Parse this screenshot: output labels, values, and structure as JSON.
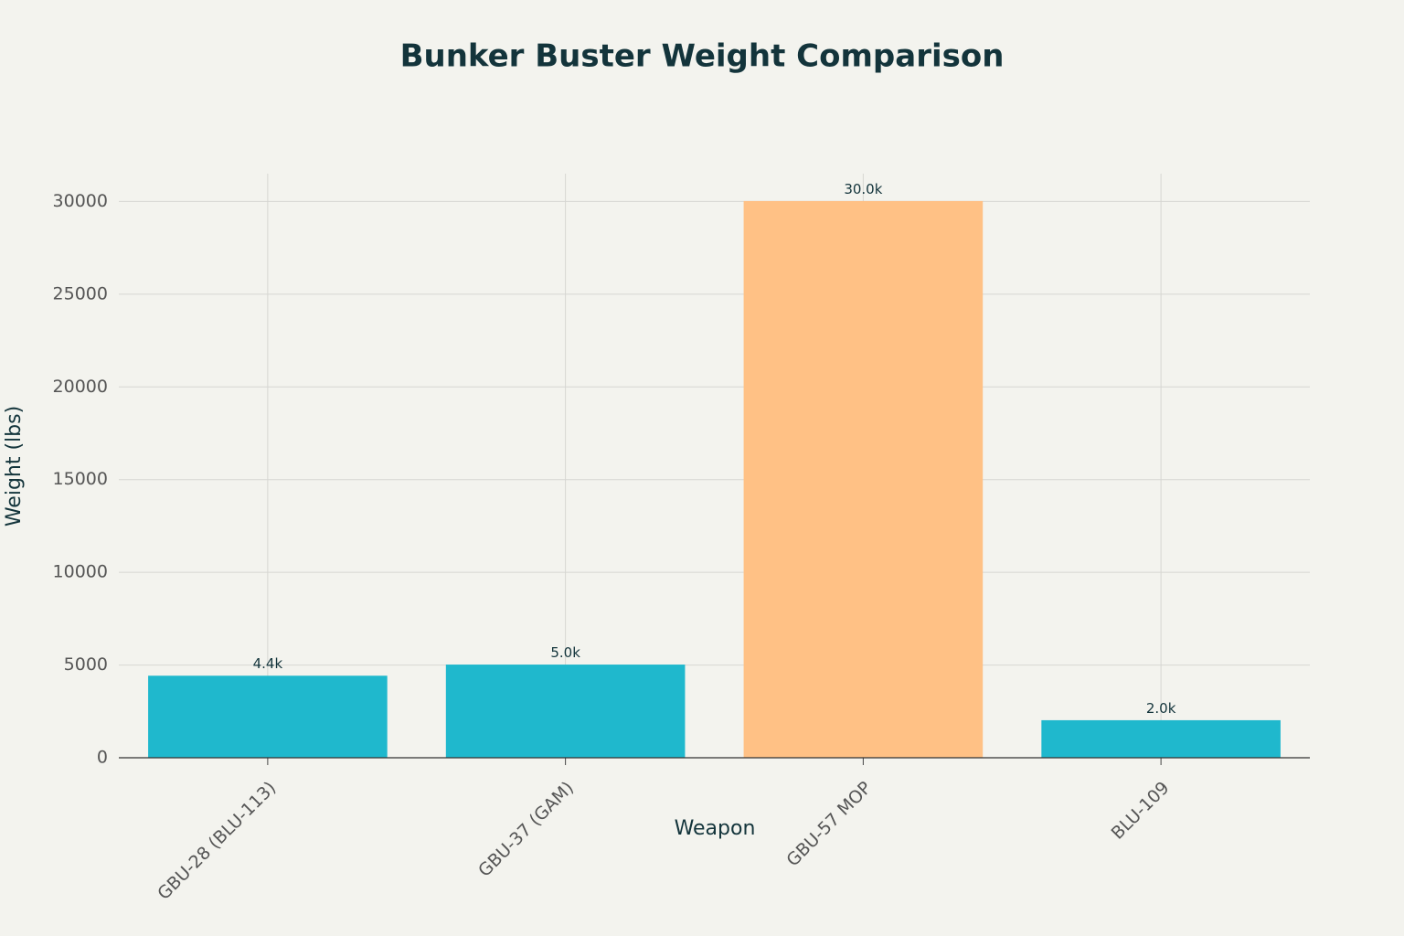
{
  "chart_data": {
    "type": "bar",
    "title": "Bunker Buster Weight Comparison",
    "x_label": "Weapon",
    "y_label": "Weight (lbs)",
    "categories": [
      "GBU-28 (BLU-113)",
      "GBU-37 (GAM)",
      "GBU-57 MOP",
      "BLU-109"
    ],
    "values": [
      4400,
      5000,
      30000,
      2000
    ],
    "value_labels": [
      "4.4k",
      "5.0k",
      "30.0k",
      "2.0k"
    ],
    "colors": [
      "#1FB8CD",
      "#1FB8CD",
      "#FFC185",
      "#1FB8CD"
    ],
    "ylim": [
      0,
      31500
    ],
    "yticks": [
      0,
      5000,
      10000,
      15000,
      20000,
      25000,
      30000
    ],
    "grid": true
  }
}
